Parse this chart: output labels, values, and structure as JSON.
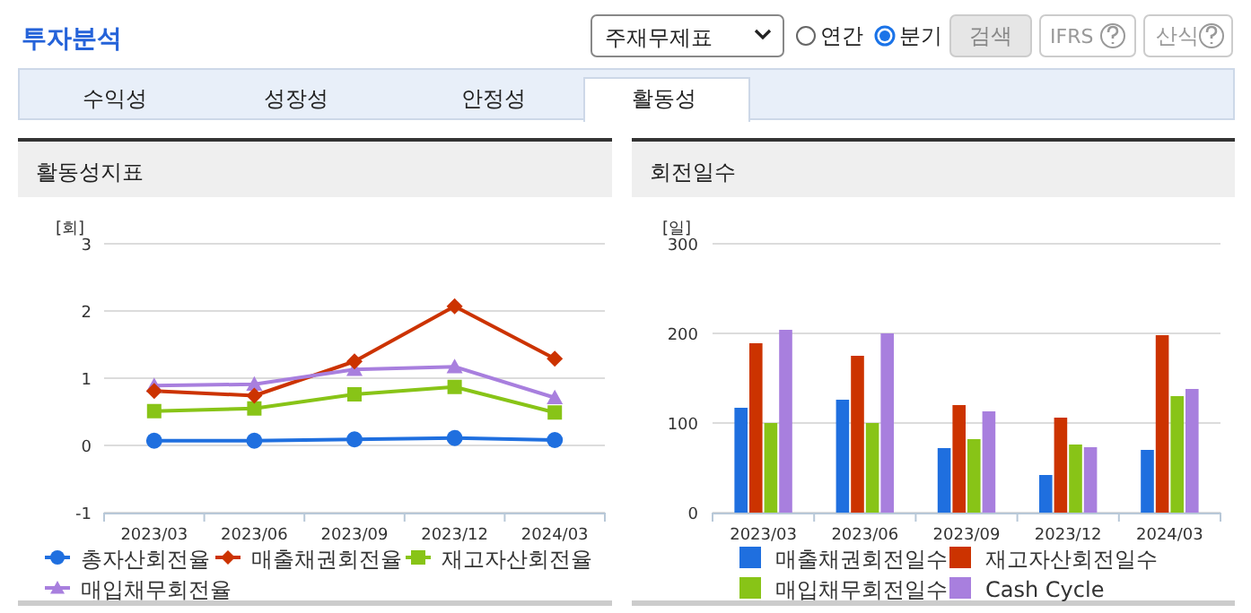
{
  "chart_data": [
    {
      "type": "other",
      "title": "투자분석",
      "annotations": [
        "주재무제표",
        "연간",
        "분기",
        "검색",
        "IFRS",
        "산식",
        "수익성",
        "성장성",
        "안정성",
        "활동성"
      ]
    },
    {
      "type": "line",
      "title": "활동성지표",
      "ylabel": "[회]",
      "categories": [
        "2023/03",
        "2023/06",
        "2023/09",
        "2023/12",
        "2024/03"
      ],
      "ylim": [
        -1,
        3
      ],
      "yticks": [
        -1,
        0,
        1,
        2,
        3
      ],
      "grid": "y",
      "legend": "bottom",
      "series": [
        {
          "name": "총자산회전율",
          "color": "#1f6fdf",
          "marker": "circle",
          "values": [
            0.07,
            0.07,
            0.09,
            0.11,
            0.08
          ]
        },
        {
          "name": "매출채권회전율",
          "color": "#cc3300",
          "marker": "diamond",
          "values": [
            0.81,
            0.74,
            1.25,
            2.07,
            1.29
          ]
        },
        {
          "name": "재고자산회전율",
          "color": "#88c417",
          "marker": "square",
          "values": [
            0.51,
            0.55,
            0.76,
            0.87,
            0.49
          ]
        },
        {
          "name": "매입채무회전율",
          "color": "#a87fde",
          "marker": "triangle",
          "values": [
            0.89,
            0.91,
            1.13,
            1.17,
            0.71
          ]
        }
      ]
    },
    {
      "type": "bar",
      "title": "회전일수",
      "ylabel": "[일]",
      "categories": [
        "2023/03",
        "2023/06",
        "2023/09",
        "2023/12",
        "2024/03"
      ],
      "ylim": [
        0,
        300
      ],
      "yticks": [
        0,
        100,
        200,
        300
      ],
      "grid": "y",
      "legend": "bottom",
      "series": [
        {
          "name": "매출채권회전일수",
          "color": "#1f6fdf",
          "values": [
            117,
            126,
            72,
            42,
            70
          ]
        },
        {
          "name": "재고자산회전일수",
          "color": "#cc3300",
          "values": [
            189,
            175,
            120,
            106,
            198
          ]
        },
        {
          "name": "매입채무회전일수",
          "color": "#88c417",
          "values": [
            100,
            100,
            82,
            76,
            130
          ]
        },
        {
          "name": "Cash Cycle",
          "color": "#a87fde",
          "values": [
            204,
            200,
            113,
            73,
            138
          ]
        }
      ]
    }
  ]
}
